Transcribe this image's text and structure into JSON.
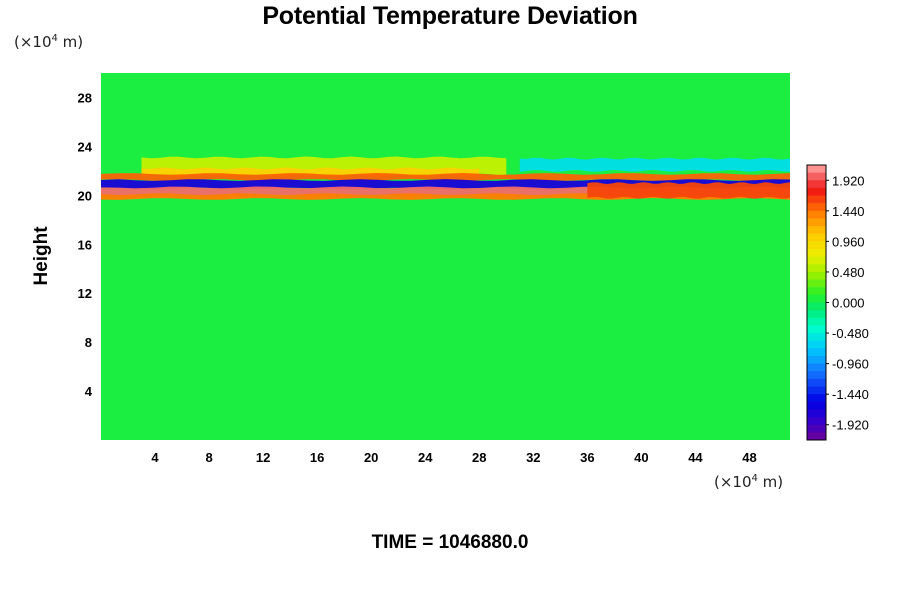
{
  "chart_data": {
    "type": "heatmap",
    "title": "Potential Temperature Deviation",
    "ylabel": "Height",
    "xlabel": "",
    "y_unit": {
      "prefix": "(×10",
      "exp": "4",
      "suffix": " m)"
    },
    "x_unit": {
      "prefix": "(×10",
      "exp": "4",
      "suffix": " m)"
    },
    "footer": "TIME = 1046880.0",
    "xlim": [
      0,
      51
    ],
    "ylim": [
      0,
      30
    ],
    "x_ticks": [
      {
        "value": 4,
        "label": "4"
      },
      {
        "value": 8,
        "label": "8"
      },
      {
        "value": 12,
        "label": "12"
      },
      {
        "value": 16,
        "label": "16"
      },
      {
        "value": 20,
        "label": "20"
      },
      {
        "value": 24,
        "label": "24"
      },
      {
        "value": 28,
        "label": "28"
      },
      {
        "value": 32,
        "label": "32"
      },
      {
        "value": 36,
        "label": "36"
      },
      {
        "value": 40,
        "label": "40"
      },
      {
        "value": 44,
        "label": "44"
      },
      {
        "value": 48,
        "label": "48"
      }
    ],
    "y_ticks": [
      {
        "value": 4,
        "label": "4"
      },
      {
        "value": 8,
        "label": "8"
      },
      {
        "value": 12,
        "label": "12"
      },
      {
        "value": 16,
        "label": "16"
      },
      {
        "value": 20,
        "label": "20"
      },
      {
        "value": 24,
        "label": "24"
      },
      {
        "value": 28,
        "label": "28"
      }
    ],
    "colorbar": {
      "min": -2.16,
      "max": 2.16,
      "levels": 36,
      "tick_labels": [
        "1.920",
        "1.440",
        "0.960",
        "0.480",
        "0.000",
        "-0.480",
        "-0.960",
        "-1.440",
        "-1.920"
      ],
      "tick_values": [
        1.92,
        1.44,
        0.96,
        0.48,
        0.0,
        -0.48,
        -0.96,
        -1.44,
        -1.92
      ]
    },
    "background_value": 0.05,
    "bands": [
      {
        "name": "upper yellow band",
        "y_center": 22.4,
        "half_width": 0.7,
        "value": 0.6,
        "x_from": 3,
        "x_to": 30
      },
      {
        "name": "orange band",
        "y_center": 21.9,
        "half_width": 0.3,
        "value": 1.0,
        "x_from": 3,
        "x_to": 28
      },
      {
        "name": "red band",
        "y_center": 21.5,
        "half_width": 0.25,
        "value": 1.5,
        "x_from": 0,
        "x_to": 51
      },
      {
        "name": "blue band",
        "y_center": 20.9,
        "half_width": 0.35,
        "value": -1.7,
        "x_from": 0,
        "x_to": 51
      },
      {
        "name": "pink band",
        "y_center": 20.3,
        "half_width": 0.35,
        "value": 2.0,
        "x_from": 0,
        "x_to": 51
      },
      {
        "name": "lower red edge",
        "y_center": 19.9,
        "half_width": 0.2,
        "value": 1.4,
        "x_from": 0,
        "x_to": 51
      },
      {
        "name": "cyan patch right",
        "y_center": 22.5,
        "half_width": 0.5,
        "value": -0.6,
        "x_from": 31,
        "x_to": 51
      },
      {
        "name": "right red lens",
        "y_center": 20.4,
        "half_width": 0.6,
        "value": 1.6,
        "x_from": 36,
        "x_to": 51
      }
    ]
  }
}
